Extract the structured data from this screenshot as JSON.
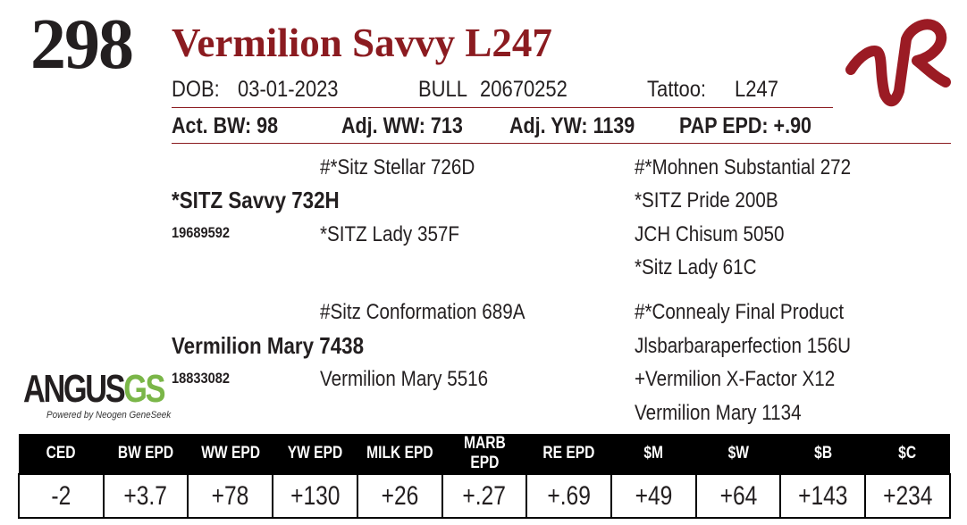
{
  "lot_number": "298",
  "animal_name": "Vermilion Savvy L247",
  "info": {
    "dob_label": "DOB:",
    "dob": "03-01-2023",
    "sex": "BULL",
    "registration": "20670252",
    "tattoo_label": "Tattoo:",
    "tattoo": "L247"
  },
  "stats": {
    "act_bw": "Act. BW: 98",
    "adj_ww": "Adj. WW: 713",
    "adj_yw": "Adj. YW: 1139",
    "pap_epd": "PAP EPD: +.90"
  },
  "pedigree": {
    "sire": "*SITZ Savvy 732H",
    "sire_reg": "19689592",
    "sire_sire": "#*Sitz Stellar 726D",
    "sire_dam": "*SITZ Lady 357F",
    "sire_sire_sire": "#*Mohnen Substantial 272",
    "sire_sire_dam": "*SITZ Pride 200B",
    "sire_dam_sire": "JCH Chisum 5050",
    "sire_dam_dam": "*Sitz Lady 61C",
    "dam": "Vermilion Mary 7438",
    "dam_reg": "18833082",
    "dam_sire": "#Sitz Conformation 689A",
    "dam_dam": "Vermilion Mary 5516",
    "dam_sire_sire": "#*Connealy Final Product",
    "dam_sire_dam": "Jlsbarbaraperfection 156U",
    "dam_dam_sire": "+Vermilion X-Factor X12",
    "dam_dam_dam": "Vermilion Mary 1134"
  },
  "logo": {
    "ranch_brand": "VR",
    "brand_color": "#9b1b24",
    "angus": "ANGUS",
    "gs": "GS",
    "powered_by": "Powered by Neogen GeneSeek"
  },
  "epd_table": {
    "headers": [
      "CED",
      "BW EPD",
      "WW EPD",
      "YW EPD",
      "MILK EPD",
      "MARB EPD",
      "RE EPD",
      "$M",
      "$W",
      "$B",
      "$C"
    ],
    "values": [
      "-2",
      "+3.7",
      "+78",
      "+130",
      "+26",
      "+.27",
      "+.69",
      "+49",
      "+64",
      "+143",
      "+234"
    ]
  }
}
